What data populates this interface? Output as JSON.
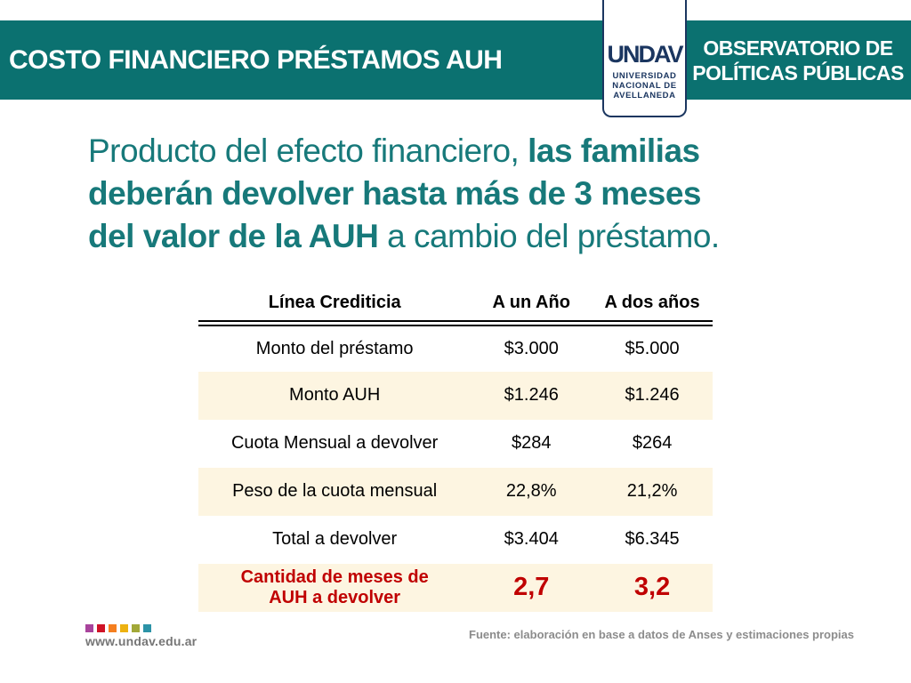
{
  "header": {
    "title": "COSTO FINANCIERO PRÉSTAMOS AUH",
    "observatory_line1": "OBSERVATORIO DE",
    "observatory_line2": "POLÍTICAS PÚBLICAS",
    "logo": {
      "wordmark": "UNDAV",
      "line1": "UNIVERSIDAD",
      "line2": "NACIONAL DE",
      "line3": "AVELLANEDA"
    }
  },
  "headline": {
    "lines": [
      {
        "pre": "Producto del efecto financiero, ",
        "bold": "las familias",
        "post": ""
      },
      {
        "pre": "",
        "bold": "deberán devolver hasta más de 3 meses",
        "post": ""
      },
      {
        "pre": "",
        "bold": "del valor de la AUH",
        "post": " a cambio del préstamo."
      }
    ]
  },
  "table": {
    "columns": [
      "Línea Crediticia",
      "A un Año",
      "A dos años"
    ],
    "rows": [
      {
        "label": "Monto del préstamo",
        "year1": "$3.000",
        "year2": "$5.000"
      },
      {
        "label": "Monto AUH",
        "year1": "$1.246",
        "year2": "$1.246"
      },
      {
        "label": "Cuota Mensual a devolver",
        "year1": "$284",
        "year2": "$264"
      },
      {
        "label": "Peso de la cuota mensual",
        "year1": "22,8%",
        "year2": "21,2%"
      },
      {
        "label": "Total a devolver",
        "year1": "$3.404",
        "year2": "$6.345"
      },
      {
        "label_lines": [
          "Cantidad de meses de",
          "AUH a devolver"
        ],
        "year1": "2,7",
        "year2": "3,2"
      }
    ]
  },
  "footer": {
    "website": "www.undav.edu.ar",
    "source": "Fuente: elaboración en base a datos de Anses y estimaciones propias",
    "dot_colors": [
      "#A8449C",
      "#D01327",
      "#F57F20",
      "#EDB211",
      "#A2A838",
      "#2C93A7"
    ]
  },
  "colors": {
    "teal_band": "#0B7170",
    "teal_text": "#17797A",
    "navy": "#1B3660",
    "cream": "#FDF5E1",
    "red": "#C00000"
  }
}
